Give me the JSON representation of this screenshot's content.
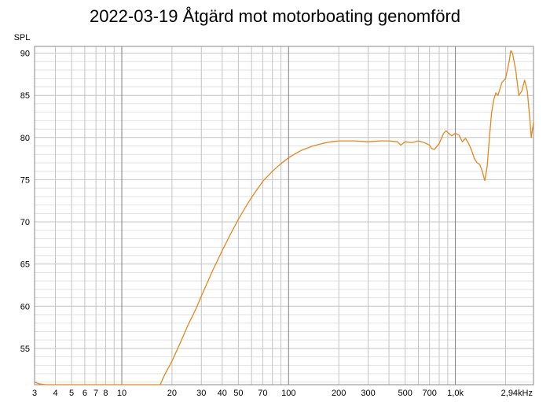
{
  "chart_data": {
    "type": "line",
    "title": "2022-03-19 Åtgärd mot motorboating genomförd",
    "ylabel": "SPL",
    "xlabel": "",
    "x_scale": "log",
    "x_unit": "Hz",
    "xlim": [
      3,
      2940
    ],
    "ylim": [
      50.7,
      90.8
    ],
    "grid": true,
    "line_color": "#e8861a",
    "y_ticks": [
      {
        "value": 55,
        "label": "55"
      },
      {
        "value": 60,
        "label": "60"
      },
      {
        "value": 65,
        "label": "65"
      },
      {
        "value": 70,
        "label": "70"
      },
      {
        "value": 75,
        "label": "75"
      },
      {
        "value": 80,
        "label": "80"
      },
      {
        "value": 85,
        "label": "85"
      },
      {
        "value": 90,
        "label": "90"
      }
    ],
    "x_ticks": [
      {
        "value": 3,
        "label": "3"
      },
      {
        "value": 4,
        "label": "4"
      },
      {
        "value": 5,
        "label": "5"
      },
      {
        "value": 6,
        "label": "6"
      },
      {
        "value": 7,
        "label": "7"
      },
      {
        "value": 8,
        "label": "8"
      },
      {
        "value": 10,
        "label": "10"
      },
      {
        "value": 20,
        "label": "20"
      },
      {
        "value": 30,
        "label": "30"
      },
      {
        "value": 40,
        "label": "40"
      },
      {
        "value": 50,
        "label": "50"
      },
      {
        "value": 70,
        "label": "70"
      },
      {
        "value": 100,
        "label": "100"
      },
      {
        "value": 200,
        "label": "200"
      },
      {
        "value": 300,
        "label": "300"
      },
      {
        "value": 500,
        "label": "500"
      },
      {
        "value": 700,
        "label": "700"
      },
      {
        "value": 1000,
        "label": "1,0k"
      },
      {
        "value": 2940,
        "label": "2,94kHz"
      }
    ],
    "series": [
      {
        "x": [
          3,
          3.2,
          3.5,
          17,
          18,
          20,
          22,
          25,
          28,
          30,
          35,
          40,
          45,
          50,
          55,
          60,
          70,
          80,
          90,
          100,
          110,
          120,
          140,
          160,
          180,
          200,
          250,
          300,
          350,
          400,
          450,
          470,
          500,
          550,
          600,
          650,
          700,
          720,
          750,
          800,
          850,
          880,
          900,
          950,
          1000,
          1050,
          1100,
          1150,
          1200,
          1250,
          1300,
          1350,
          1400,
          1450,
          1500,
          1550,
          1600,
          1650,
          1700,
          1750,
          1800,
          1900,
          2000,
          2050,
          2100,
          2150,
          2200,
          2300,
          2400,
          2500,
          2600,
          2700,
          2800,
          2850,
          2940
        ],
        "y": [
          51.0,
          50.8,
          50.7,
          50.7,
          51.8,
          53.5,
          55.3,
          57.8,
          59.8,
          61.2,
          64.2,
          66.6,
          68.6,
          70.3,
          71.7,
          72.9,
          74.8,
          76.0,
          76.9,
          77.6,
          78.1,
          78.5,
          79.0,
          79.3,
          79.5,
          79.6,
          79.6,
          79.5,
          79.6,
          79.6,
          79.5,
          79.1,
          79.5,
          79.4,
          79.6,
          79.4,
          79.1,
          78.7,
          78.6,
          79.3,
          80.5,
          80.8,
          80.6,
          80.2,
          80.5,
          80.3,
          79.5,
          79.9,
          79.3,
          78.5,
          77.5,
          77.0,
          76.8,
          76.0,
          74.9,
          76.5,
          80.0,
          83.0,
          84.5,
          85.3,
          85.0,
          86.5,
          87.0,
          88.0,
          89.0,
          90.3,
          90.0,
          88.0,
          85.0,
          85.5,
          86.8,
          85.5,
          82.0,
          80.0,
          81.8
        ]
      }
    ]
  }
}
